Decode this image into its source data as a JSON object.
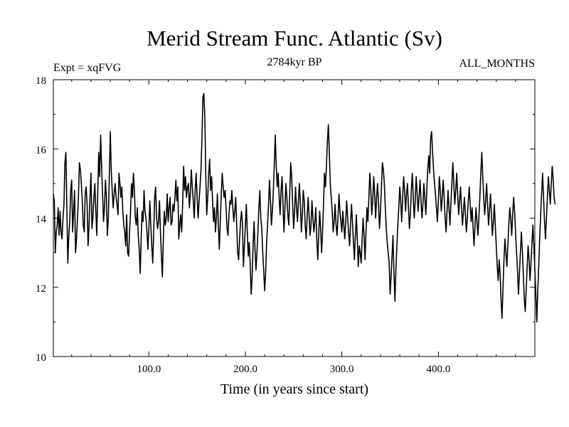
{
  "chart_data": {
    "type": "line",
    "title": "Merid Stream Func. Atlantic (Sv)",
    "expt_label": "Expt = xqFVG",
    "period_label": "2784kyr BP",
    "months_label": "ALL_MONTHS",
    "xlabel": "Time (in years since start)",
    "ylabel": "",
    "xlim": [
      1,
      500
    ],
    "ylim": [
      10,
      18
    ],
    "x_ticks": [
      100,
      200,
      300,
      400
    ],
    "x_tick_labels": [
      "100.0",
      "200.0",
      "300.0",
      "400.0"
    ],
    "y_ticks": [
      10,
      12,
      14,
      16,
      18
    ],
    "y_tick_labels": [
      "10",
      "12",
      "14",
      "16",
      "18"
    ],
    "series": [
      {
        "name": "Merid Stream Func. Atlantic",
        "x_start": 1,
        "x_step": 1,
        "values": [
          14.7,
          14.5,
          13.0,
          13.6,
          13.8,
          14.3,
          13.5,
          14.2,
          13.6,
          13.4,
          14.0,
          14.4,
          15.6,
          15.9,
          14.3,
          12.7,
          13.5,
          13.9,
          14.8,
          15.1,
          13.6,
          14.2,
          14.8,
          13.0,
          13.4,
          14.0,
          14.6,
          15.6,
          15.4,
          15.0,
          14.5,
          13.8,
          13.6,
          14.7,
          14.9,
          14.4,
          13.2,
          13.8,
          14.6,
          15.3,
          13.7,
          14.0,
          14.6,
          15.0,
          14.2,
          13.5,
          14.7,
          15.9,
          15.2,
          16.4,
          15.5,
          14.7,
          13.9,
          14.3,
          15.1,
          14.6,
          13.5,
          14.0,
          15.2,
          16.5,
          15.4,
          14.8,
          14.3,
          14.7,
          15.0,
          14.6,
          14.4,
          14.1,
          15.3,
          15.0,
          14.6,
          14.9,
          14.2,
          13.8,
          13.6,
          13.2,
          14.1,
          13.0,
          12.9,
          13.6,
          14.2,
          15.0,
          14.6,
          15.3,
          14.8,
          14.0,
          13.8,
          14.3,
          13.5,
          13.1,
          12.4,
          13.4,
          14.2,
          13.9,
          14.8,
          14.2,
          14.0,
          13.6,
          13.1,
          13.7,
          14.5,
          13.8,
          13.2,
          12.7,
          13.6,
          14.6,
          14.9,
          14.0,
          13.7,
          13.9,
          14.5,
          13.6,
          12.9,
          12.3,
          13.4,
          14.2,
          13.8,
          14.0,
          14.7,
          13.9,
          14.3,
          14.6,
          13.8,
          13.9,
          14.4,
          14.2,
          14.6,
          15.1,
          14.5,
          14.9,
          13.4,
          13.8,
          14.1,
          13.6,
          14.4,
          15.5,
          14.8,
          15.2,
          14.6,
          14.9,
          15.0,
          14.3,
          14.7,
          15.4,
          14.9,
          14.5,
          14.0,
          14.8,
          15.3,
          14.6,
          14.0,
          14.5,
          14.9,
          15.4,
          16.3,
          17.5,
          17.6,
          16.9,
          15.2,
          14.1,
          14.6,
          15.3,
          15.7,
          14.8,
          15.2,
          14.5,
          13.9,
          14.3,
          13.6,
          14.0,
          14.7,
          13.8,
          13.1,
          13.9,
          14.7,
          15.3,
          14.9,
          14.6,
          14.8,
          14.3,
          13.7,
          13.5,
          14.1,
          14.5,
          14.4,
          14.8,
          14.3,
          13.9,
          14.2,
          14.6,
          13.8,
          13.0,
          12.8,
          13.4,
          13.9,
          14.2,
          13.8,
          12.6,
          13.2,
          13.8,
          14.4,
          13.6,
          12.9,
          13.3,
          12.7,
          11.8,
          12.3,
          13.2,
          13.9,
          13.1,
          12.5,
          13.0,
          13.6,
          14.3,
          14.8,
          14.0,
          13.7,
          13.0,
          12.5,
          11.9,
          12.4,
          13.3,
          13.8,
          14.4,
          15.1,
          14.5,
          13.8,
          14.2,
          14.8,
          15.6,
          16.4,
          15.5,
          14.9,
          15.3,
          14.6,
          14.1,
          14.8,
          15.2,
          14.4,
          13.6,
          14.3,
          15.0,
          14.6,
          14.1,
          13.8,
          14.7,
          15.6,
          15.2,
          14.4,
          13.7,
          14.2,
          14.9,
          14.3,
          13.9,
          14.5,
          15.0,
          14.4,
          13.6,
          14.1,
          14.8,
          14.5,
          13.8,
          13.4,
          14.0,
          14.6,
          14.1,
          13.5,
          13.8,
          14.5,
          14.0,
          13.6,
          13.9,
          14.3,
          13.4,
          12.8,
          13.5,
          14.2,
          13.7,
          13.0,
          13.6,
          14.4,
          15.3,
          14.9,
          15.5,
          16.2,
          16.7,
          15.9,
          15.0,
          14.6,
          14.2,
          13.6,
          13.9,
          14.4,
          13.8,
          13.5,
          14.0,
          14.7,
          14.2,
          13.9,
          13.6,
          14.2,
          13.8,
          13.4,
          13.9,
          14.5,
          14.0,
          13.6,
          13.2,
          13.8,
          14.4,
          13.9,
          13.3,
          12.8,
          13.5,
          14.1,
          13.4,
          12.6,
          13.2,
          13.0,
          12.7,
          13.4,
          14.0,
          13.5,
          12.8,
          13.6,
          14.3,
          13.9,
          14.6,
          15.3,
          14.8,
          14.1,
          14.5,
          15.2,
          14.7,
          14.0,
          14.6,
          15.0,
          14.4,
          13.7,
          14.2,
          14.9,
          15.6,
          15.4,
          15.0,
          14.3,
          13.7,
          13.3,
          13.0,
          12.7,
          11.8,
          12.3,
          12.9,
          13.5,
          12.4,
          11.6,
          12.5,
          13.2,
          13.8,
          14.3,
          14.9,
          14.5,
          13.9,
          14.6,
          15.2,
          14.8,
          14.2,
          14.7,
          15.0,
          14.3,
          13.7,
          14.1,
          14.8,
          15.3,
          14.6,
          14.0,
          14.5,
          15.2,
          14.7,
          14.2,
          14.6,
          15.1,
          14.5,
          14.0,
          14.4,
          15.0,
          14.6,
          14.1,
          14.8,
          15.4,
          15.8,
          15.3,
          16.3,
          16.5,
          15.9,
          15.4,
          15.0,
          14.7,
          14.3,
          13.9,
          14.5,
          15.2,
          14.8,
          14.2,
          14.6,
          15.1,
          14.6,
          14.0,
          13.6,
          14.2,
          14.8,
          14.3,
          13.8,
          14.4,
          15.0,
          15.6,
          15.0,
          14.4,
          14.8,
          15.3,
          14.7,
          14.1,
          14.5,
          14.9,
          14.3,
          13.8,
          14.2,
          14.6,
          14.1,
          13.6,
          14.0,
          14.5,
          14.9,
          14.4,
          13.9,
          14.3,
          13.7,
          13.2,
          13.8,
          14.3,
          13.9,
          13.5,
          14.0,
          14.6,
          15.3,
          15.9,
          15.2,
          14.6,
          14.1,
          14.5,
          15.0,
          14.4,
          13.8,
          14.2,
          14.7,
          14.1,
          13.5,
          13.9,
          14.4,
          13.8,
          13.2,
          12.6,
          12.2,
          12.8,
          12.4,
          11.6,
          11.1,
          12.0,
          12.8,
          13.4,
          13.0,
          12.6,
          13.2,
          13.8,
          14.3,
          14.0,
          13.5,
          14.1,
          14.6,
          14.2,
          13.6,
          13.0,
          12.5,
          11.8,
          12.4,
          13.0,
          13.6,
          13.1,
          12.4,
          11.7,
          11.3,
          11.9,
          12.6,
          13.2,
          12.8,
          12.2,
          12.7,
          13.3,
          13.8,
          13.2,
          12.5,
          11.8,
          11.0,
          11.9,
          12.6,
          13.4,
          14.1,
          14.7,
          15.3,
          14.6,
          13.9,
          13.4,
          14.0,
          14.6,
          15.2,
          14.8,
          14.4,
          15.0,
          15.5,
          15.1,
          14.6,
          14.4
        ]
      }
    ]
  }
}
